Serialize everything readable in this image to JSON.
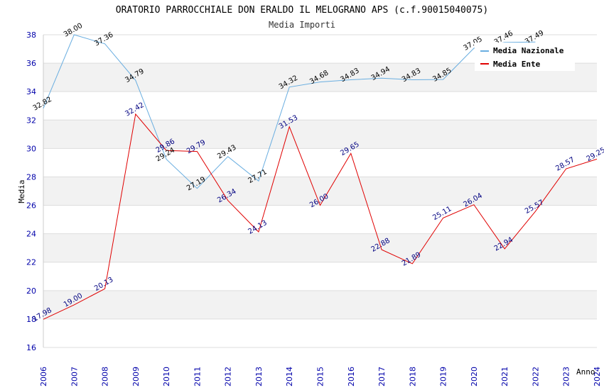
{
  "chart_data": {
    "type": "line",
    "title": "ORATORIO PARROCCHIALE DON ERALDO IL MELOGRANO APS (c.f.90015040075)",
    "subtitle": "Media Importi",
    "xlabel": "Anno",
    "ylabel": "Media",
    "ylim": [
      16,
      38
    ],
    "y_ticks": [
      "16",
      "18",
      "20",
      "22",
      "24",
      "26",
      "28",
      "30",
      "32",
      "34",
      "36",
      "38"
    ],
    "categories": [
      "2006",
      "2007",
      "2008",
      "2009",
      "2010",
      "2011",
      "2012",
      "2013",
      "2014",
      "2015",
      "2016",
      "2017",
      "2018",
      "2019",
      "2020",
      "2021",
      "2022",
      "2023",
      "2024"
    ],
    "legend_position": "top-right",
    "series": [
      {
        "name": "Media Nazionale",
        "color": "#6aaee0",
        "label_color": "#000000",
        "values": [
          32.82,
          38.0,
          37.36,
          34.79,
          29.24,
          27.19,
          29.43,
          27.71,
          34.32,
          34.68,
          34.83,
          34.94,
          34.83,
          34.85,
          37.05,
          37.46,
          37.49,
          null,
          null
        ],
        "labels": [
          "32.82",
          "38.00",
          "37.36",
          "34.79",
          "29.24",
          "27.19",
          "29.43",
          "27.71",
          "34.32",
          "34.68",
          "34.83",
          "34.94",
          "34.83",
          "34.85",
          "37.05",
          "37.46",
          "37.49",
          null,
          null
        ]
      },
      {
        "name": "Media Ente",
        "color": "#e00000",
        "label_color": "#000080",
        "values": [
          17.98,
          19.0,
          20.13,
          32.42,
          29.86,
          29.79,
          26.34,
          24.13,
          31.53,
          26.0,
          29.65,
          22.88,
          21.89,
          25.11,
          26.04,
          22.94,
          25.57,
          28.57,
          29.25
        ],
        "labels": [
          "17.98",
          "19.00",
          "20.13",
          "32.42",
          "29.86",
          "29.79",
          "26.34",
          "24.13",
          "31.53",
          "26.00",
          "29.65",
          "22.88",
          "21.89",
          "25.11",
          "26.04",
          "22.94",
          "25.57",
          "28.57",
          "29.25"
        ]
      }
    ]
  }
}
